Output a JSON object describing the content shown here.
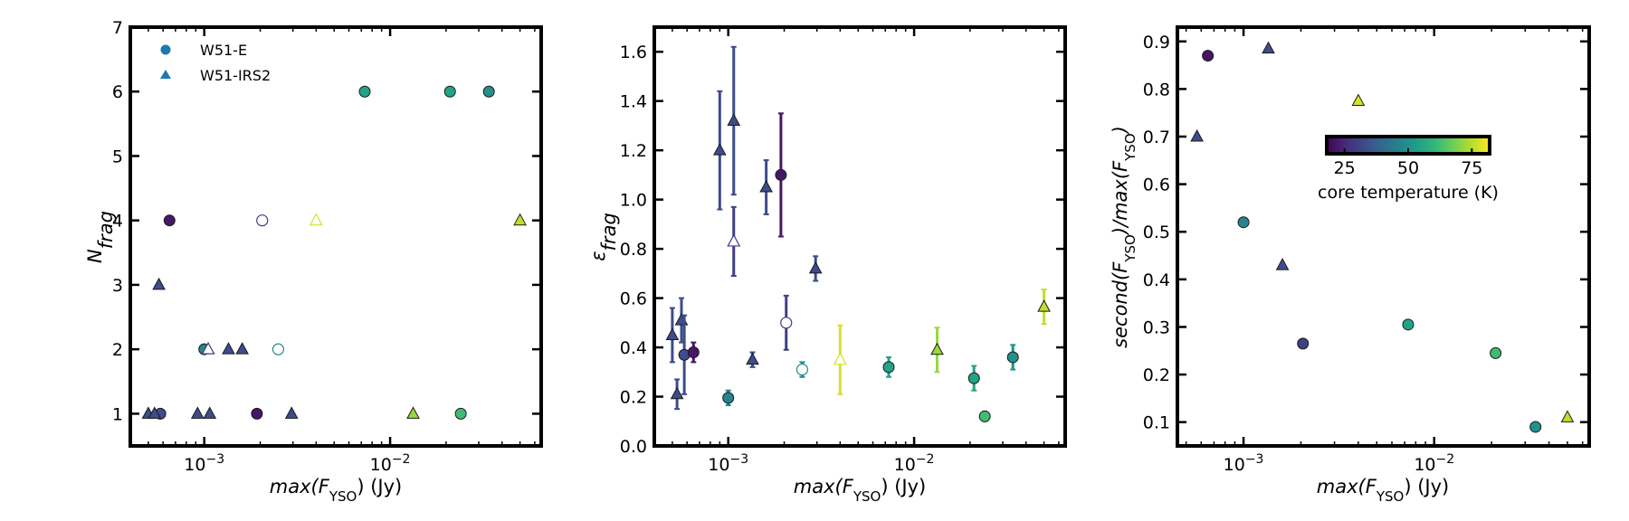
{
  "chart_data": [
    {
      "type": "scatter",
      "panel": "left",
      "xlabel": "max(F_YSO) (Jy)",
      "xlabel_parts": {
        "pre": "max(",
        "var": "F",
        "sub": "YSO",
        "post": ") (Jy)"
      },
      "ylabel": "N_frag",
      "ylabel_parts": {
        "base": "N",
        "sub": "frag"
      },
      "xscale": "log",
      "xlim": [
        0.0004,
        0.065
      ],
      "ylim": [
        0.5,
        7
      ],
      "xticks": [
        {
          "value": 0.001,
          "base": "10",
          "exp": "−3"
        },
        {
          "value": 0.01,
          "base": "10",
          "exp": "−2"
        }
      ],
      "yticks": [
        {
          "value": 1,
          "label": "1"
        },
        {
          "value": 2,
          "label": "2"
        },
        {
          "value": 3,
          "label": "3"
        },
        {
          "value": 4,
          "label": "4"
        },
        {
          "value": 5,
          "label": "5"
        },
        {
          "value": 6,
          "label": "6"
        },
        {
          "value": 7,
          "label": "7"
        }
      ],
      "legend": {
        "position": "top-left",
        "entries": [
          {
            "label": "W51-E",
            "marker": "circle",
            "color": "#1f77b4"
          },
          {
            "label": "W51-IRS2",
            "marker": "triangle",
            "color": "#1f77b4"
          }
        ]
      },
      "points": [
        {
          "x": 0.00065,
          "y": 4,
          "m": "circle",
          "t": 22
        },
        {
          "x": 0.00058,
          "y": 1,
          "m": "circle",
          "t": 33
        },
        {
          "x": 0.0005,
          "y": 1,
          "m": "triangle",
          "t": 33
        },
        {
          "x": 0.00054,
          "y": 1,
          "m": "triangle",
          "t": 33
        },
        {
          "x": 0.00057,
          "y": 3,
          "m": "triangle",
          "t": 33
        },
        {
          "x": 0.00092,
          "y": 1,
          "m": "triangle",
          "t": 33
        },
        {
          "x": 0.00107,
          "y": 1,
          "m": "triangle",
          "t": 33
        },
        {
          "x": 0.001,
          "y": 2,
          "m": "circle",
          "t": 47
        },
        {
          "x": 0.00105,
          "y": 2,
          "m": "triangle",
          "t": 30,
          "open": true
        },
        {
          "x": 0.00135,
          "y": 2,
          "m": "triangle",
          "t": 33
        },
        {
          "x": 0.0016,
          "y": 2,
          "m": "triangle",
          "t": 33
        },
        {
          "x": 0.00192,
          "y": 1,
          "m": "circle",
          "t": 22
        },
        {
          "x": 0.00205,
          "y": 4,
          "m": "circle",
          "t": 30,
          "open": true
        },
        {
          "x": 0.0025,
          "y": 2,
          "m": "circle",
          "t": 48,
          "open": true
        },
        {
          "x": 0.00295,
          "y": 1,
          "m": "triangle",
          "t": 33
        },
        {
          "x": 0.004,
          "y": 4,
          "m": "triangle",
          "t": 78,
          "open": true
        },
        {
          "x": 0.0073,
          "y": 6,
          "m": "circle",
          "t": 55
        },
        {
          "x": 0.0133,
          "y": 1,
          "m": "triangle",
          "t": 72
        },
        {
          "x": 0.021,
          "y": 6,
          "m": "circle",
          "t": 55
        },
        {
          "x": 0.024,
          "y": 1,
          "m": "circle",
          "t": 62
        },
        {
          "x": 0.034,
          "y": 6,
          "m": "circle",
          "t": 50
        },
        {
          "x": 0.05,
          "y": 4,
          "m": "triangle",
          "t": 76
        }
      ]
    },
    {
      "type": "scatter",
      "panel": "middle",
      "xlabel": "max(F_YSO) (Jy)",
      "xlabel_parts": {
        "pre": "max(",
        "var": "F",
        "sub": "YSO",
        "post": ") (Jy)"
      },
      "ylabel": "ε_frag",
      "ylabel_parts": {
        "base": "ε",
        "sub": "frag"
      },
      "xscale": "log",
      "xlim": [
        0.0004,
        0.065
      ],
      "ylim": [
        0.0,
        1.7
      ],
      "xticks": [
        {
          "value": 0.001,
          "base": "10",
          "exp": "−3"
        },
        {
          "value": 0.01,
          "base": "10",
          "exp": "−2"
        }
      ],
      "yticks": [
        {
          "value": 0.0,
          "label": "0.0"
        },
        {
          "value": 0.2,
          "label": "0.2"
        },
        {
          "value": 0.4,
          "label": "0.4"
        },
        {
          "value": 0.6,
          "label": "0.6"
        },
        {
          "value": 0.8,
          "label": "0.8"
        },
        {
          "value": 1.0,
          "label": "1.0"
        },
        {
          "value": 1.2,
          "label": "1.2"
        },
        {
          "value": 1.4,
          "label": "1.4"
        },
        {
          "value": 1.6,
          "label": "1.6"
        }
      ],
      "points": [
        {
          "x": 0.0005,
          "y": 0.45,
          "m": "triangle",
          "t": 33,
          "err": 0.11
        },
        {
          "x": 0.00053,
          "y": 0.21,
          "m": "triangle",
          "t": 33,
          "err": 0.06
        },
        {
          "x": 0.00056,
          "y": 0.51,
          "m": "triangle",
          "t": 33,
          "err": 0.09
        },
        {
          "x": 0.00058,
          "y": 0.37,
          "m": "circle",
          "t": 33,
          "err": 0.16
        },
        {
          "x": 0.00065,
          "y": 0.38,
          "m": "circle",
          "t": 22,
          "err": 0.04
        },
        {
          "x": 0.0009,
          "y": 1.2,
          "m": "triangle",
          "t": 33,
          "err": 0.24
        },
        {
          "x": 0.001,
          "y": 0.195,
          "m": "circle",
          "t": 47,
          "err": 0.03
        },
        {
          "x": 0.00107,
          "y": 1.32,
          "m": "triangle",
          "t": 33,
          "err": 0.3
        },
        {
          "x": 0.00107,
          "y": 0.83,
          "m": "triangle",
          "t": 30,
          "err": 0.14,
          "open": true
        },
        {
          "x": 0.00135,
          "y": 0.35,
          "m": "triangle",
          "t": 33,
          "err": 0.03
        },
        {
          "x": 0.0016,
          "y": 1.05,
          "m": "triangle",
          "t": 33,
          "err": 0.11
        },
        {
          "x": 0.00192,
          "y": 1.1,
          "m": "circle",
          "t": 22,
          "err": 0.25
        },
        {
          "x": 0.00205,
          "y": 0.5,
          "m": "circle",
          "t": 30,
          "err": 0.11,
          "open": true
        },
        {
          "x": 0.0025,
          "y": 0.31,
          "m": "circle",
          "t": 48,
          "err": 0.03,
          "open": true
        },
        {
          "x": 0.00295,
          "y": 0.72,
          "m": "triangle",
          "t": 33,
          "err": 0.05
        },
        {
          "x": 0.004,
          "y": 0.35,
          "m": "triangle",
          "t": 78,
          "err": 0.14,
          "open": true
        },
        {
          "x": 0.0073,
          "y": 0.32,
          "m": "circle",
          "t": 55,
          "err": 0.04
        },
        {
          "x": 0.0133,
          "y": 0.39,
          "m": "triangle",
          "t": 72,
          "err": 0.09
        },
        {
          "x": 0.021,
          "y": 0.275,
          "m": "circle",
          "t": 55,
          "err": 0.05
        },
        {
          "x": 0.024,
          "y": 0.12,
          "m": "circle",
          "t": 62,
          "err": 0.02
        },
        {
          "x": 0.034,
          "y": 0.36,
          "m": "circle",
          "t": 50,
          "err": 0.05
        },
        {
          "x": 0.05,
          "y": 0.565,
          "m": "triangle",
          "t": 76,
          "err": 0.07
        }
      ]
    },
    {
      "type": "scatter",
      "panel": "right",
      "xlabel": "max(F_YSO) (Jy)",
      "xlabel_parts": {
        "pre": "max(",
        "var": "F",
        "sub": "YSO",
        "post": ") (Jy)"
      },
      "ylabel": "second(F_YSO)/max(F_YSO)",
      "ylabel_parts": {
        "a": "second(",
        "b": "F",
        "c": "YSO",
        "d": ")/max(",
        "e": "F",
        "f": "YSO",
        "g": ")"
      },
      "xscale": "log",
      "xlim": [
        0.00045,
        0.065
      ],
      "ylim": [
        0.05,
        0.93
      ],
      "xticks": [
        {
          "value": 0.001,
          "base": "10",
          "exp": "−3"
        },
        {
          "value": 0.01,
          "base": "10",
          "exp": "−2"
        }
      ],
      "yticks": [
        {
          "value": 0.1,
          "label": "0.1"
        },
        {
          "value": 0.2,
          "label": "0.2"
        },
        {
          "value": 0.3,
          "label": "0.3"
        },
        {
          "value": 0.4,
          "label": "0.4"
        },
        {
          "value": 0.5,
          "label": "0.5"
        },
        {
          "value": 0.6,
          "label": "0.6"
        },
        {
          "value": 0.7,
          "label": "0.7"
        },
        {
          "value": 0.8,
          "label": "0.8"
        },
        {
          "value": 0.9,
          "label": "0.9"
        }
      ],
      "colorbar": {
        "label": "core temperature (K)",
        "range": [
          18,
          82
        ],
        "ticks": [
          {
            "value": 25,
            "label": "25"
          },
          {
            "value": 50,
            "label": "50"
          },
          {
            "value": 75,
            "label": "75"
          }
        ],
        "colormap": [
          "#440154",
          "#482878",
          "#3e4989",
          "#31688e",
          "#26828e",
          "#1f9e89",
          "#35b779",
          "#6ece58",
          "#b5de2b",
          "#fde725"
        ]
      },
      "points": [
        {
          "x": 0.00057,
          "y": 0.7,
          "m": "triangle",
          "t": 33
        },
        {
          "x": 0.00065,
          "y": 0.87,
          "m": "circle",
          "t": 22
        },
        {
          "x": 0.001,
          "y": 0.52,
          "m": "circle",
          "t": 47
        },
        {
          "x": 0.00135,
          "y": 0.885,
          "m": "triangle",
          "t": 33
        },
        {
          "x": 0.0016,
          "y": 0.43,
          "m": "triangle",
          "t": 33
        },
        {
          "x": 0.00205,
          "y": 0.265,
          "m": "circle",
          "t": 30
        },
        {
          "x": 0.004,
          "y": 0.775,
          "m": "triangle",
          "t": 78
        },
        {
          "x": 0.0073,
          "y": 0.305,
          "m": "circle",
          "t": 55
        },
        {
          "x": 0.021,
          "y": 0.245,
          "m": "circle",
          "t": 62
        },
        {
          "x": 0.034,
          "y": 0.09,
          "m": "circle",
          "t": 50
        },
        {
          "x": 0.05,
          "y": 0.11,
          "m": "triangle",
          "t": 76
        }
      ]
    }
  ]
}
